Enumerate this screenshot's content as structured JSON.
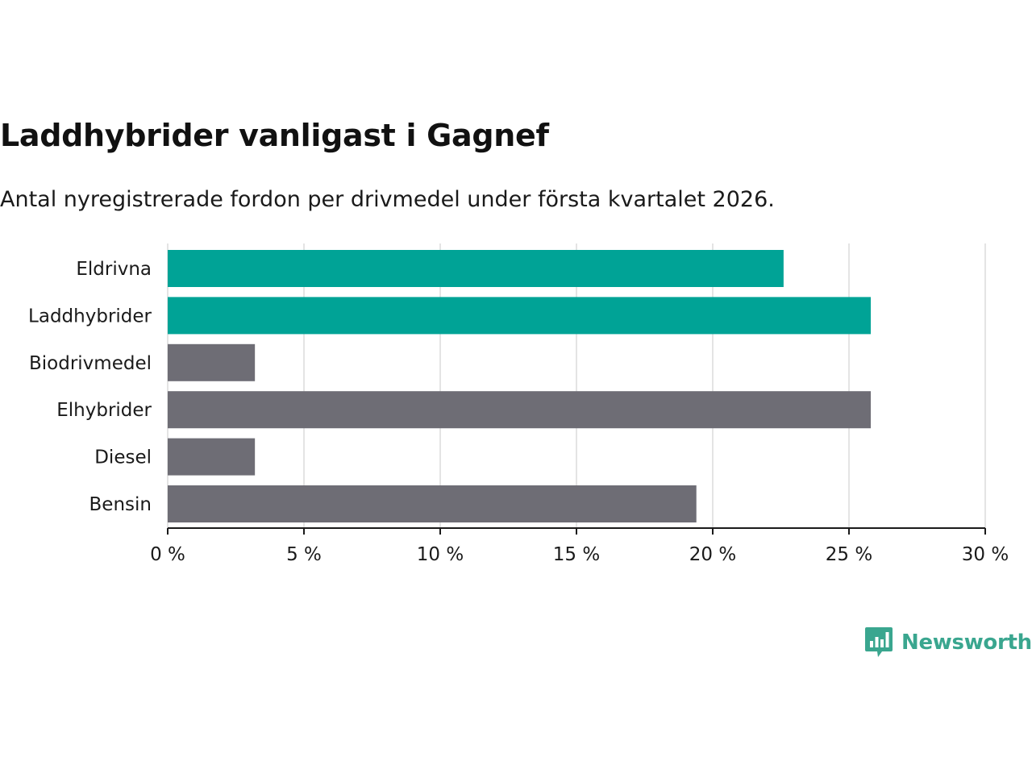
{
  "header": {
    "title": "Laddhybrider vanligast i Gagnef",
    "subtitle": "Antal nyregistrerade fordon per drivmedel under första kvartalet 2026."
  },
  "brand": {
    "name": "Newsworthy",
    "icon": "newsworthy-logo-icon",
    "color": "#3aa68f"
  },
  "chart_data": {
    "type": "bar",
    "orientation": "horizontal",
    "title": "Laddhybrider vanligast i Gagnef",
    "subtitle": "Antal nyregistrerade fordon per drivmedel under första kvartalet 2026.",
    "xlabel": "",
    "ylabel": "",
    "categories": [
      "Eldrivna",
      "Laddhybrider",
      "Biodrivmedel",
      "Elhybrider",
      "Diesel",
      "Bensin"
    ],
    "values": [
      22.6,
      25.8,
      3.2,
      25.8,
      3.2,
      19.4
    ],
    "highlight": [
      true,
      true,
      false,
      false,
      false,
      false
    ],
    "colors": {
      "highlight": "#00a396",
      "default": "#6e6d75",
      "grid": "#dcdcdc",
      "axis": "#1a1a1a"
    },
    "xlim": [
      0,
      30
    ],
    "xticks": [
      0,
      5,
      10,
      15,
      20,
      25,
      30
    ],
    "tick_suffix": " %",
    "grid": true,
    "legend": "none"
  }
}
